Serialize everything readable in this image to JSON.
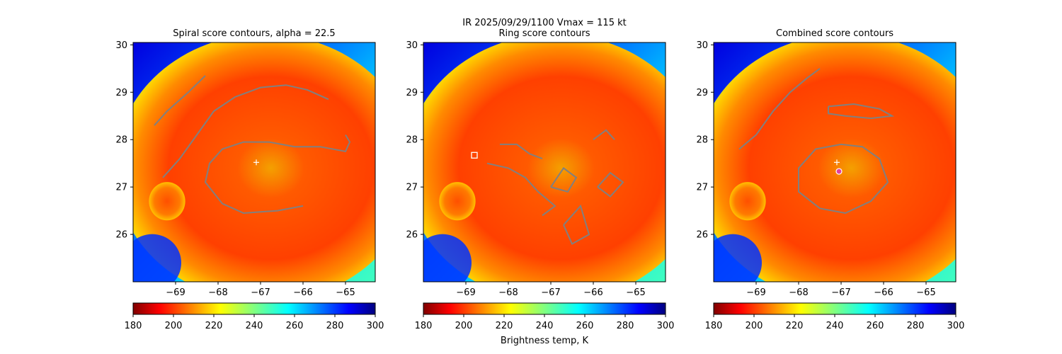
{
  "figure": {
    "suptitle_line1": "IR  2025/09/29/1100    Vmax = 115 kt",
    "colorbar_label": "Brightness temp, K"
  },
  "colors": {
    "contour": "#808080",
    "center_marker": "#ffffff",
    "combined_marker": "#e040a0"
  },
  "colormap": {
    "name": "jet",
    "ticks": [
      180,
      200,
      220,
      240,
      260,
      280,
      300
    ],
    "range": [
      180,
      300
    ]
  },
  "chart_data": [
    {
      "type": "heatmap",
      "title": "Spiral score contours, alpha = 22.5",
      "colormap": "jet",
      "xlim": [
        -70.0,
        -64.3
      ],
      "ylim": [
        25.0,
        30.05
      ],
      "xticks": [
        -69,
        -68,
        -67,
        -66,
        -65
      ],
      "yticks": [
        26,
        27,
        28,
        29,
        30
      ],
      "colorbar_ticks": [
        180,
        200,
        220,
        240,
        260,
        280,
        300
      ],
      "storm_center": [
        -67.1,
        27.52
      ],
      "contours": [
        [
          [
            -69.5,
            28.3
          ],
          [
            -69.2,
            28.6
          ],
          [
            -68.7,
            29.0
          ],
          [
            -68.3,
            29.35
          ]
        ],
        [
          [
            -69.3,
            27.2
          ],
          [
            -68.9,
            27.6
          ],
          [
            -68.5,
            28.1
          ],
          [
            -68.1,
            28.6
          ],
          [
            -67.6,
            28.9
          ],
          [
            -67.0,
            29.1
          ],
          [
            -66.4,
            29.15
          ],
          [
            -65.9,
            29.05
          ],
          [
            -65.4,
            28.85
          ]
        ],
        [
          [
            -66.0,
            26.6
          ],
          [
            -66.6,
            26.5
          ],
          [
            -67.4,
            26.45
          ],
          [
            -67.9,
            26.65
          ],
          [
            -68.3,
            27.1
          ],
          [
            -68.2,
            27.5
          ],
          [
            -67.9,
            27.8
          ],
          [
            -67.4,
            27.95
          ],
          [
            -66.8,
            27.95
          ],
          [
            -66.2,
            27.85
          ],
          [
            -65.6,
            27.85
          ],
          [
            -65.0,
            27.75
          ],
          [
            -64.9,
            27.95
          ],
          [
            -65.0,
            28.1
          ]
        ]
      ]
    },
    {
      "type": "heatmap",
      "title": "Ring score contours",
      "colormap": "jet",
      "xlim": [
        -70.0,
        -64.3
      ],
      "ylim": [
        25.0,
        30.05
      ],
      "xticks": [
        -69,
        -68,
        -67,
        -66,
        -65
      ],
      "yticks": [
        26,
        27,
        28,
        29,
        30
      ],
      "colorbar_ticks": [
        180,
        200,
        220,
        240,
        260,
        280,
        300
      ],
      "best_ring_point": [
        -68.8,
        27.67
      ],
      "contours": [
        [
          [
            -68.5,
            27.5
          ],
          [
            -68.0,
            27.4
          ],
          [
            -67.6,
            27.2
          ],
          [
            -67.3,
            26.9
          ],
          [
            -66.9,
            26.6
          ],
          [
            -67.2,
            26.4
          ]
        ],
        [
          [
            -68.2,
            27.9
          ],
          [
            -67.8,
            27.9
          ],
          [
            -67.5,
            27.7
          ],
          [
            -67.2,
            27.6
          ]
        ],
        [
          [
            -67.0,
            27.0
          ],
          [
            -66.7,
            27.4
          ],
          [
            -66.4,
            27.2
          ],
          [
            -66.6,
            26.9
          ],
          [
            -67.0,
            27.0
          ]
        ],
        [
          [
            -65.9,
            27.0
          ],
          [
            -65.6,
            27.3
          ],
          [
            -65.3,
            27.1
          ],
          [
            -65.6,
            26.8
          ],
          [
            -65.9,
            27.0
          ]
        ],
        [
          [
            -66.7,
            26.2
          ],
          [
            -66.3,
            26.6
          ],
          [
            -66.1,
            26.0
          ],
          [
            -66.5,
            25.8
          ],
          [
            -66.7,
            26.2
          ]
        ],
        [
          [
            -66.0,
            28.0
          ],
          [
            -65.7,
            28.2
          ],
          [
            -65.5,
            28.0
          ]
        ]
      ]
    },
    {
      "type": "heatmap",
      "title": "Combined score contours",
      "colormap": "jet",
      "xlim": [
        -70.0,
        -64.3
      ],
      "ylim": [
        25.0,
        30.05
      ],
      "xticks": [
        -69,
        -68,
        -67,
        -66,
        -65
      ],
      "yticks": [
        26,
        27,
        28,
        29,
        30
      ],
      "colorbar_ticks": [
        180,
        200,
        220,
        240,
        260,
        280,
        300
      ],
      "storm_center": [
        -67.1,
        27.52
      ],
      "combined_point": [
        -67.05,
        27.33
      ],
      "contours": [
        [
          [
            -69.4,
            27.8
          ],
          [
            -69.0,
            28.1
          ],
          [
            -68.6,
            28.6
          ],
          [
            -68.2,
            29.0
          ],
          [
            -67.8,
            29.3
          ],
          [
            -67.5,
            29.5
          ]
        ],
        [
          [
            -67.3,
            28.7
          ],
          [
            -66.7,
            28.75
          ],
          [
            -66.1,
            28.65
          ],
          [
            -65.8,
            28.5
          ],
          [
            -66.3,
            28.45
          ],
          [
            -66.9,
            28.5
          ],
          [
            -67.3,
            28.55
          ],
          [
            -67.3,
            28.7
          ]
        ],
        [
          [
            -67.0,
            27.9
          ],
          [
            -66.5,
            27.85
          ],
          [
            -66.1,
            27.6
          ],
          [
            -65.9,
            27.1
          ],
          [
            -66.3,
            26.7
          ],
          [
            -66.9,
            26.45
          ],
          [
            -67.5,
            26.55
          ],
          [
            -68.0,
            26.9
          ],
          [
            -68.0,
            27.4
          ],
          [
            -67.6,
            27.8
          ],
          [
            -67.0,
            27.9
          ]
        ]
      ]
    }
  ]
}
